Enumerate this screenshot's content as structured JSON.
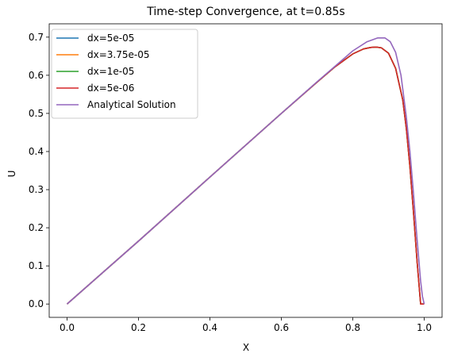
{
  "chart_data": {
    "type": "line",
    "title": "Time-step Convergence, at t=0.85s",
    "xlabel": "X",
    "ylabel": "U",
    "xlim": [
      -0.05,
      1.05
    ],
    "ylim": [
      -0.035,
      0.735
    ],
    "xticks": [
      0.0,
      0.2,
      0.4,
      0.6,
      0.8,
      1.0
    ],
    "xtick_labels": [
      "0.0",
      "0.2",
      "0.4",
      "0.6",
      "0.8",
      "1.0"
    ],
    "yticks": [
      0.0,
      0.1,
      0.2,
      0.3,
      0.4,
      0.5,
      0.6,
      0.7
    ],
    "ytick_labels": [
      "0.0",
      "0.1",
      "0.2",
      "0.3",
      "0.4",
      "0.5",
      "0.6",
      "0.7"
    ],
    "grid": false,
    "legend_position": "top-left",
    "series": [
      {
        "name": "dx=5e-05",
        "color": "#1f77b4",
        "x": [
          0.0,
          0.2,
          0.4,
          0.6,
          0.7,
          0.75,
          0.8,
          0.83,
          0.85,
          0.865,
          0.88,
          0.9,
          0.92,
          0.94,
          0.95,
          0.96,
          0.97,
          0.98,
          0.99,
          1.0
        ],
        "y": [
          0.0,
          0.165,
          0.333,
          0.5,
          0.582,
          0.622,
          0.656,
          0.669,
          0.673,
          0.674,
          0.672,
          0.658,
          0.618,
          0.535,
          0.46,
          0.36,
          0.24,
          0.112,
          0.0,
          0.0
        ]
      },
      {
        "name": "dx=3.75e-05",
        "color": "#ff7f0e",
        "x": [
          0.0,
          0.2,
          0.4,
          0.6,
          0.7,
          0.75,
          0.8,
          0.83,
          0.85,
          0.865,
          0.88,
          0.9,
          0.92,
          0.94,
          0.95,
          0.96,
          0.97,
          0.98,
          0.99,
          1.0
        ],
        "y": [
          0.0,
          0.165,
          0.333,
          0.5,
          0.582,
          0.622,
          0.656,
          0.669,
          0.673,
          0.674,
          0.672,
          0.658,
          0.618,
          0.535,
          0.46,
          0.36,
          0.24,
          0.112,
          0.0,
          0.0
        ]
      },
      {
        "name": "dx=1e-05",
        "color": "#2ca02c",
        "x": [
          0.0,
          0.2,
          0.4,
          0.6,
          0.7,
          0.75,
          0.8,
          0.83,
          0.85,
          0.865,
          0.88,
          0.9,
          0.92,
          0.94,
          0.95,
          0.96,
          0.97,
          0.98,
          0.99,
          1.0
        ],
        "y": [
          0.0,
          0.165,
          0.333,
          0.5,
          0.582,
          0.622,
          0.656,
          0.669,
          0.673,
          0.674,
          0.672,
          0.658,
          0.618,
          0.535,
          0.46,
          0.36,
          0.24,
          0.112,
          0.0,
          0.0
        ]
      },
      {
        "name": "dx=5e-06",
        "color": "#d62728",
        "x": [
          0.0,
          0.2,
          0.4,
          0.6,
          0.7,
          0.75,
          0.8,
          0.83,
          0.85,
          0.865,
          0.88,
          0.9,
          0.92,
          0.94,
          0.95,
          0.96,
          0.97,
          0.98,
          0.99,
          1.0
        ],
        "y": [
          0.0,
          0.165,
          0.333,
          0.5,
          0.582,
          0.622,
          0.656,
          0.669,
          0.673,
          0.674,
          0.672,
          0.658,
          0.618,
          0.535,
          0.46,
          0.36,
          0.24,
          0.112,
          0.0,
          0.0
        ]
      },
      {
        "name": "Analytical Solution",
        "color": "#9467bd",
        "x": [
          0.0,
          0.2,
          0.4,
          0.6,
          0.7,
          0.8,
          0.84,
          0.87,
          0.89,
          0.905,
          0.92,
          0.935,
          0.95,
          0.96,
          0.97,
          0.98,
          0.99,
          0.995,
          1.0
        ],
        "y": [
          0.0,
          0.165,
          0.333,
          0.5,
          0.583,
          0.664,
          0.688,
          0.698,
          0.698,
          0.688,
          0.66,
          0.6,
          0.49,
          0.4,
          0.29,
          0.17,
          0.06,
          0.02,
          0.0
        ]
      }
    ]
  }
}
